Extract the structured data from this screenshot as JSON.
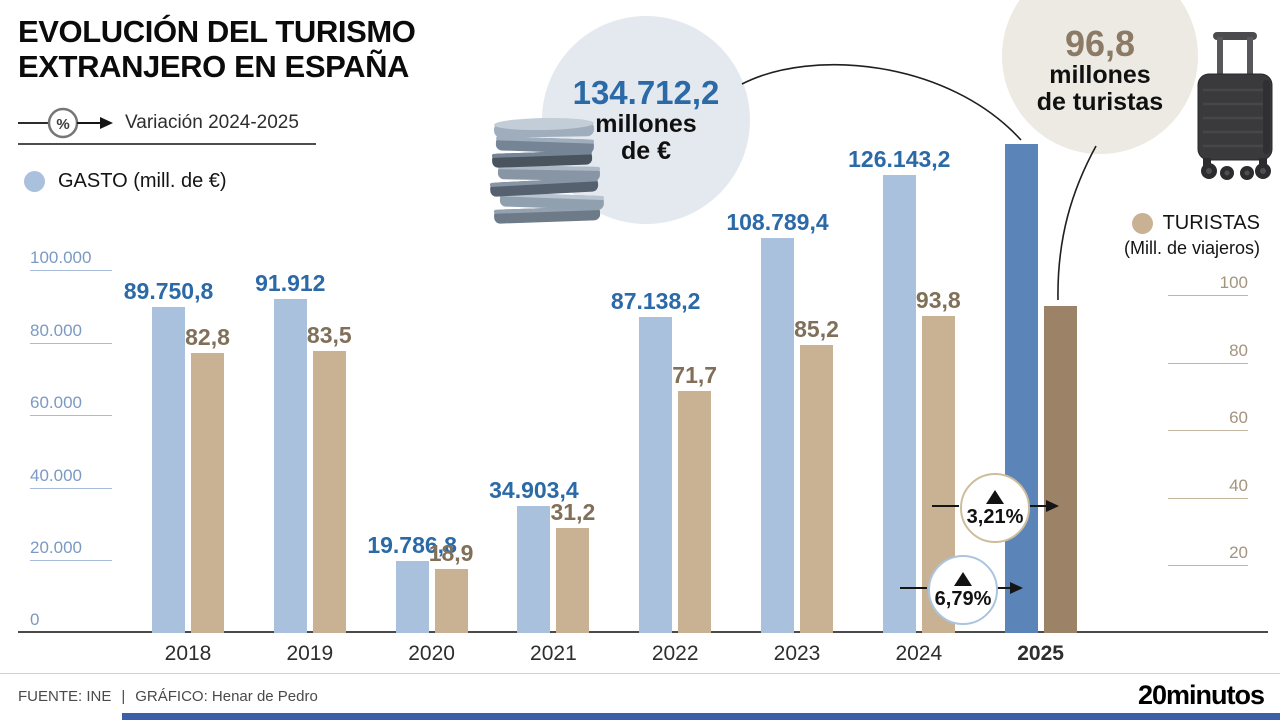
{
  "title": {
    "line1": "EVOLUCIÓN DEL TURISMO",
    "line2": "EXTRANJERO EN ESPAÑA"
  },
  "variation_legend": {
    "symbol": "%",
    "label": "Variación 2024-2025"
  },
  "legends": {
    "gasto": {
      "label": "GASTO",
      "unit": "(mill. de €)",
      "dot_color": "#a9c1dc"
    },
    "turistas": {
      "label": "TURISTAS",
      "unit": "(Mill. de viajeros)",
      "dot_color": "#c9b294"
    }
  },
  "callouts": {
    "gasto": {
      "value": "134.712,2",
      "unit_line1": "millones",
      "unit_line2": "de €",
      "icon": "coins"
    },
    "turistas": {
      "value": "96,8",
      "unit_line1": "millones",
      "unit_line2": "de turistas",
      "icon": "suitcase"
    }
  },
  "variation_badges": [
    {
      "direction": "up",
      "value": "3,21%",
      "points_to": "turistas-2025"
    },
    {
      "direction": "up",
      "value": "6,79%",
      "points_to": "gasto-2025"
    }
  ],
  "footer": {
    "source": "FUENTE: INE",
    "divider": "|",
    "credit": "GRÁFICO: Henar de Pedro",
    "brand": "20minutos"
  },
  "colors": {
    "gasto_bar": "#a9c1dc",
    "gasto_bar_2025": "#5b85b8",
    "turistas_bar": "#c9b294",
    "turistas_bar_2025": "#9c8266",
    "gasto_text": "#2b6aa7",
    "turistas_text": "#817059",
    "bubble_gasto_bg": "#e3e9ef",
    "bubble_turistas_bg": "#edeae3",
    "bottom_bar": "#3c60a8"
  },
  "chart_data": {
    "type": "bar",
    "title": "EVOLUCIÓN DEL TURISMO EXTRANJERO EN ESPAÑA",
    "categories": [
      "2018",
      "2019",
      "2020",
      "2021",
      "2022",
      "2023",
      "2024",
      "2025"
    ],
    "highlight_category": "2025",
    "series": [
      {
        "name": "GASTO (mill. de €)",
        "axis": "left",
        "color": "#a9c1dc",
        "highlight_color": "#5b85b8",
        "label_color": "#2b6aa7",
        "values": [
          89750.8,
          91912,
          19786.8,
          34903.4,
          87138.2,
          108789.4,
          126143.2,
          134712.2
        ],
        "value_labels": [
          "89.750,8",
          "91.912",
          "19.786,8",
          "34.903,4",
          "87.138,2",
          "108.789,4",
          "126.143,2",
          ""
        ]
      },
      {
        "name": "TURISTAS (Mill. de viajeros)",
        "axis": "right",
        "color": "#c9b294",
        "highlight_color": "#9c8266",
        "label_color": "#817059",
        "values": [
          82.8,
          83.5,
          18.9,
          31.2,
          71.7,
          85.2,
          93.8,
          96.8
        ],
        "value_labels": [
          "82,8",
          "83,5",
          "18,9",
          "31,2",
          "71,7",
          "85,2",
          "93,8",
          ""
        ]
      }
    ],
    "left_axis": {
      "tick_labels": [
        "100.000",
        "80.000",
        "60.000",
        "40.000",
        "20.000"
      ],
      "tick_values": [
        100000,
        80000,
        60000,
        40000,
        20000
      ],
      "zero_label": "0",
      "range": [
        0,
        100000
      ]
    },
    "right_axis": {
      "tick_labels": [
        "100",
        "80",
        "60",
        "40",
        "20"
      ],
      "tick_values": [
        100,
        80,
        60,
        40,
        20
      ],
      "range": [
        0,
        100
      ]
    },
    "grid": "short tick dashes only",
    "legend_position": "gasto top-left, turistas right",
    "annotations": {
      "gasto_2025": "134.712,2 millones de €",
      "turistas_2025": "96,8 millones de turistas",
      "variation_2024_2025": [
        "+3,21% turistas",
        "+6,79% gasto"
      ]
    }
  }
}
